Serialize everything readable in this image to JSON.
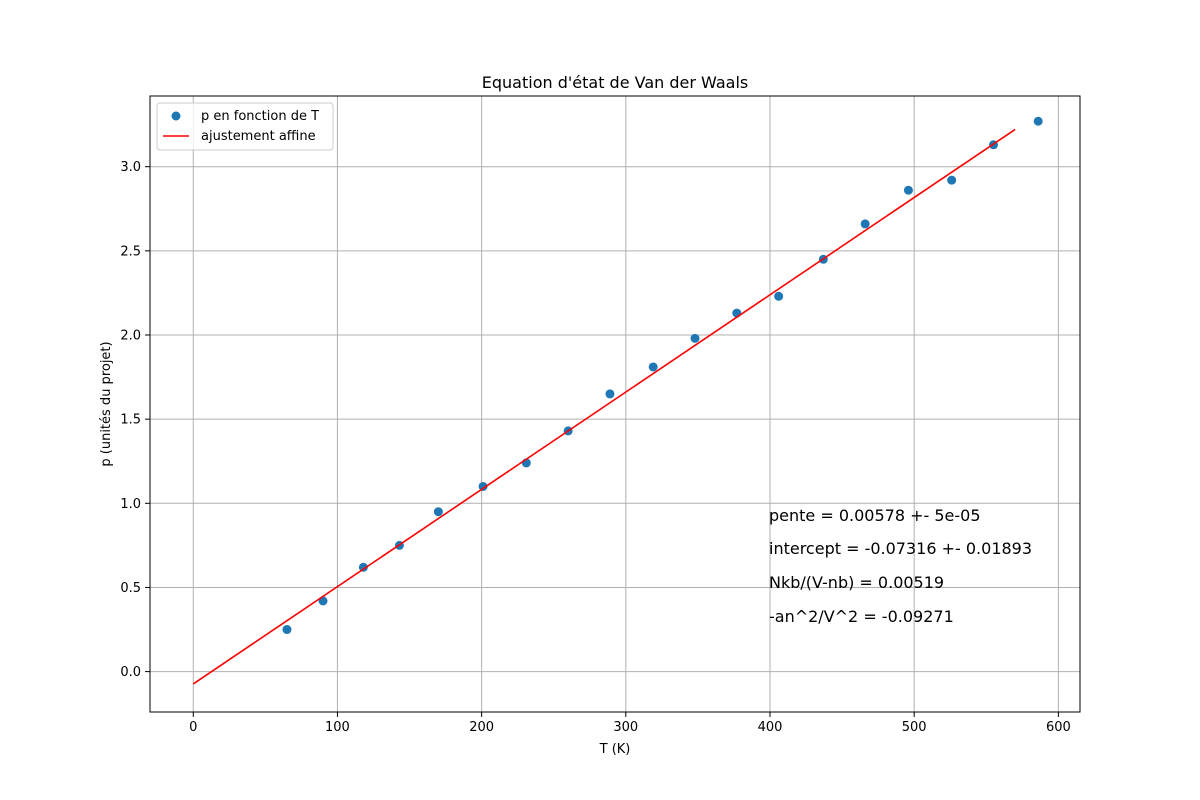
{
  "chart_data": {
    "type": "scatter",
    "title": "Equation d'état de Van der Waals",
    "xlabel": "T (K)",
    "ylabel": "p (unités du projet)",
    "xlim": [
      -30,
      615
    ],
    "ylim": [
      -0.24,
      3.42
    ],
    "x_ticks": [
      0,
      100,
      200,
      300,
      400,
      500,
      600
    ],
    "y_ticks": [
      0.0,
      0.5,
      1.0,
      1.5,
      2.0,
      2.5,
      3.0
    ],
    "x_tick_labels": [
      "0",
      "100",
      "200",
      "300",
      "400",
      "500",
      "600"
    ],
    "y_tick_labels": [
      "0.0",
      "0.5",
      "1.0",
      "1.5",
      "2.0",
      "2.5",
      "3.0"
    ],
    "grid": true,
    "legend_position": "upper-left",
    "series": [
      {
        "name": "p en fonction de T",
        "type": "scatter",
        "color": "#1f77b4",
        "x": [
          65,
          90,
          118,
          143,
          170,
          201,
          231,
          260,
          289,
          319,
          348,
          377,
          406,
          437,
          466,
          496,
          526,
          555,
          586
        ],
        "y": [
          0.25,
          0.42,
          0.62,
          0.75,
          0.95,
          1.1,
          1.24,
          1.43,
          1.65,
          1.81,
          1.98,
          2.13,
          2.23,
          2.45,
          2.66,
          2.86,
          2.92,
          3.13,
          3.27
        ]
      },
      {
        "name": "ajustement affine",
        "type": "line",
        "color": "#ff0000",
        "x": [
          0,
          570
        ],
        "y": [
          -0.07316,
          3.22144
        ]
      }
    ],
    "annotations": [
      "pente = 0.00578 +- 5e-05",
      "intercept = -0.07316 +- 0.01893",
      "Nkb/(V-nb) = 0.00519",
      "-an^2/V^2 = -0.09271"
    ]
  }
}
